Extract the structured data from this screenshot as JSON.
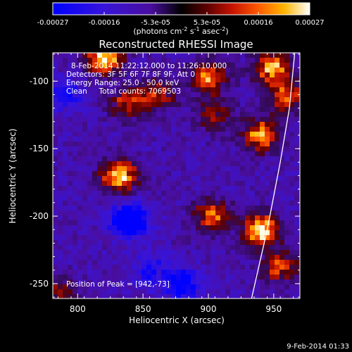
{
  "chart_data": {
    "type": "heatmap",
    "title": "Reconstructed RHESSI Image",
    "xlabel": "Heliocentric X (arcsec)",
    "ylabel": "Heliocentric Y (arcsec)",
    "xlim": [
      781,
      970
    ],
    "ylim": [
      -261,
      -79
    ],
    "xticks": [
      800,
      850,
      900,
      950
    ],
    "yticks": [
      -100,
      -150,
      -200,
      -250
    ],
    "colorbar": {
      "min": -0.00027,
      "max": 0.00027,
      "tick_labels": [
        "-0.00027",
        "-0.00016",
        "-5.3e-05",
        "5.3e-05",
        "0.00016",
        "0.00027"
      ],
      "label_main": "(photons cm",
      "label_sup1": "-2",
      "label_mid1": " s",
      "label_sup2": "-1",
      "label_mid2": " asec",
      "label_sup3": "-2",
      "label_end": ")"
    },
    "annotations": [
      "8-Feb-2014 11:22:12.000 to 11:26:10.000",
      "Detectors: 3F 5F 6F 7F 8F 9F, Att 0",
      "Energy Range: 25.0 - 50.0 keV",
      "Clean     Total counts: 7069503"
    ],
    "peak_label": "Position of Peak = [942,-73]",
    "footer_timestamp": "9-Feb-2014 01:33",
    "bright_regions": [
      {
        "x": 820,
        "y": -82,
        "intensity": 1.0
      },
      {
        "x": 838,
        "y": -115,
        "intensity": 0.55
      },
      {
        "x": 862,
        "y": -110,
        "intensity": 0.55
      },
      {
        "x": 832,
        "y": -170,
        "intensity": 1.0
      },
      {
        "x": 900,
        "y": -97,
        "intensity": 0.75
      },
      {
        "x": 948,
        "y": -90,
        "intensity": 0.85
      },
      {
        "x": 960,
        "y": -112,
        "intensity": 0.7
      },
      {
        "x": 940,
        "y": -140,
        "intensity": 0.8
      },
      {
        "x": 903,
        "y": -200,
        "intensity": 0.7
      },
      {
        "x": 940,
        "y": -210,
        "intensity": 1.0
      },
      {
        "x": 905,
        "y": -125,
        "intensity": 0.45
      },
      {
        "x": 955,
        "y": -238,
        "intensity": 0.6
      },
      {
        "x": 785,
        "y": -258,
        "intensity": 0.45
      }
    ],
    "dark_regions": [
      {
        "x": 840,
        "y": -203,
        "intensity": -1.0
      },
      {
        "x": 880,
        "y": -250,
        "intensity": -0.6
      },
      {
        "x": 790,
        "y": -110,
        "intensity": -0.45
      },
      {
        "x": 855,
        "y": -240,
        "intensity": -0.4
      }
    ],
    "limb_curve": [
      [
        966,
        -79
      ],
      [
        962,
        -120
      ],
      [
        955,
        -160
      ],
      [
        945,
        -210
      ],
      [
        933,
        -261
      ]
    ]
  }
}
